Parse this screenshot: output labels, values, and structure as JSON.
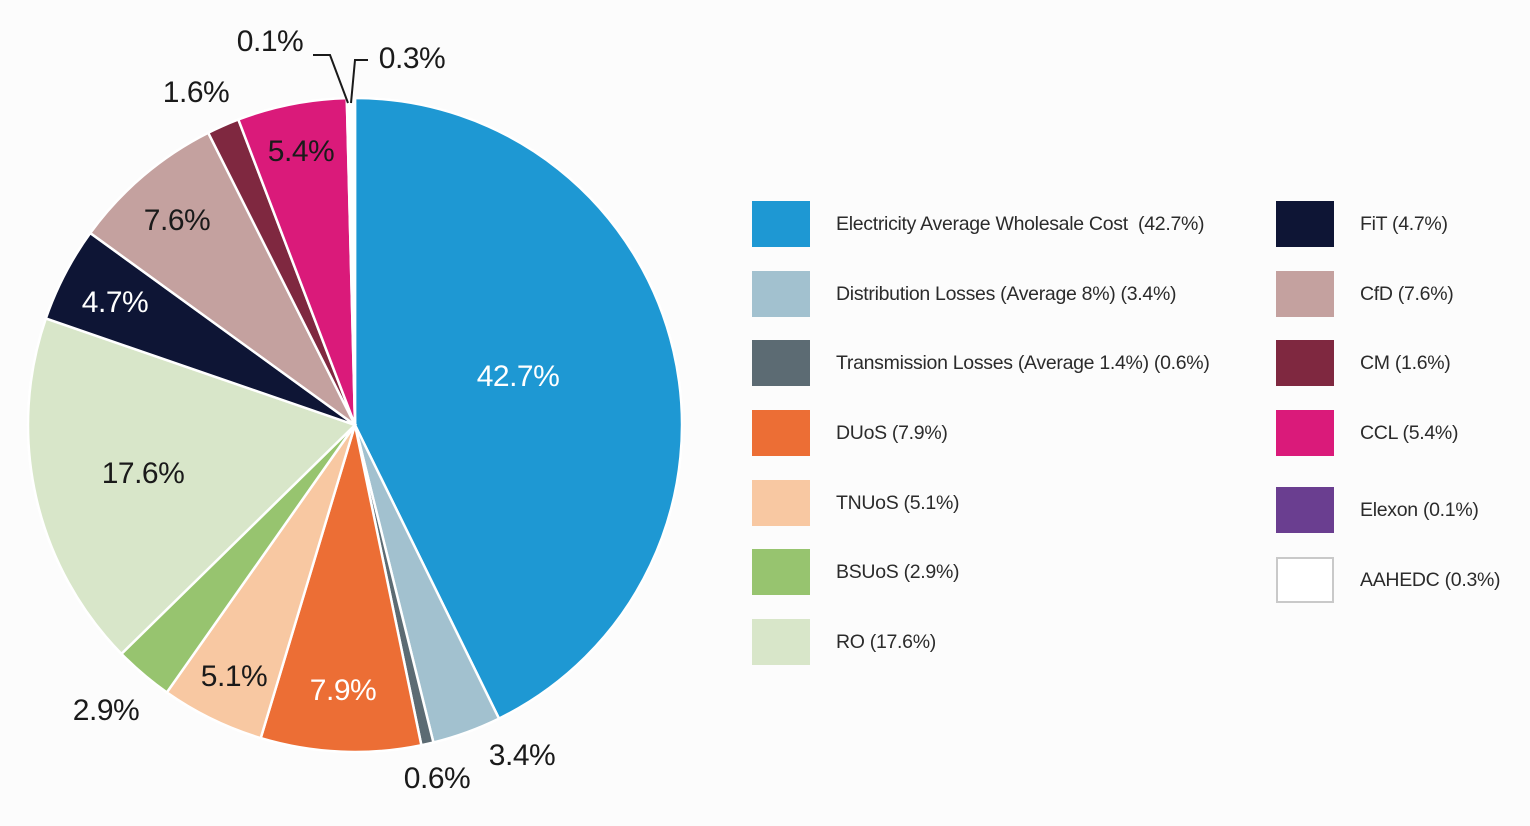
{
  "chart_data": {
    "type": "pie",
    "title": "",
    "start_angle": "top",
    "direction": "clockwise",
    "slices": [
      {
        "name": "Electricity Average Wholesale Cost",
        "value": 42.7,
        "label": "42.7%",
        "legend": "Electricity Average Wholesale Cost  (42.7%)",
        "color": "#1e98d3"
      },
      {
        "name": "Distribution Losses (Average 8%)",
        "value": 3.4,
        "label": "3.4%",
        "legend": "Distribution Losses (Average 8%) (3.4%)",
        "color": "#a2c1cf"
      },
      {
        "name": "Transmission Losses (Average 1.4%)",
        "value": 0.6,
        "label": "0.6%",
        "legend": "Transmission Losses (Average 1.4%) (0.6%)",
        "color": "#5c6b73"
      },
      {
        "name": "DUoS",
        "value": 7.9,
        "label": "7.9%",
        "legend": "DUoS (7.9%)",
        "color": "#ec6e35"
      },
      {
        "name": "TNUoS",
        "value": 5.1,
        "label": "5.1%",
        "legend": "TNUoS (5.1%)",
        "color": "#f8c8a2"
      },
      {
        "name": "BSUoS",
        "value": 2.9,
        "label": "2.9%",
        "legend": "BSUoS (2.9%)",
        "color": "#97c46f"
      },
      {
        "name": "RO",
        "value": 17.6,
        "label": "17.6%",
        "legend": "RO (17.6%)",
        "color": "#d8e6c9"
      },
      {
        "name": "FiT",
        "value": 4.7,
        "label": "4.7%",
        "legend": "FiT (4.7%)",
        "color": "#0e1535"
      },
      {
        "name": "CfD",
        "value": 7.6,
        "label": "7.6%",
        "legend": "CfD (7.6%)",
        "color": "#c4a19f"
      },
      {
        "name": "CM",
        "value": 1.6,
        "label": "1.6%",
        "legend": "CM (1.6%)",
        "color": "#7f2840"
      },
      {
        "name": "CCL",
        "value": 5.4,
        "label": "5.4%",
        "legend": "CCL (5.4%)",
        "color": "#da1a7a"
      },
      {
        "name": "Elexon",
        "value": 0.1,
        "label": "0.1%",
        "legend": "Elexon (0.1%)",
        "color": "#6a3e90"
      },
      {
        "name": "AAHEDC",
        "value": 0.3,
        "label": "0.3%",
        "legend": "AAHEDC (0.3%)",
        "color": "#ffffff"
      }
    ],
    "legend_placement": "right"
  }
}
